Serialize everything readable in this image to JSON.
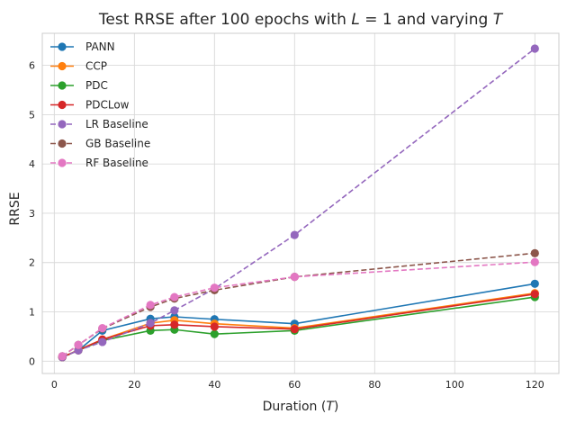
{
  "chart_data": {
    "type": "line",
    "title": "Test RRSE after 100 epochs with L = 1 and varying T",
    "title_parts": {
      "prefix": "Test RRSE after 100 epochs with ",
      "var1": "L",
      "mid": " = 1 and varying ",
      "var2": "T"
    },
    "xlabel": "Duration (T)",
    "xlabel_parts": {
      "prefix": "Duration (",
      "var": "T",
      "suffix": ")"
    },
    "ylabel": "RRSE",
    "xlim": [
      -3,
      126
    ],
    "ylim": [
      -0.25,
      6.65
    ],
    "xticks": [
      0,
      20,
      40,
      60,
      80,
      100,
      120
    ],
    "yticks": [
      0,
      1,
      2,
      3,
      4,
      5,
      6
    ],
    "grid": true,
    "legend_position": "top-left",
    "x": [
      2,
      6,
      12,
      24,
      30,
      40,
      60,
      120
    ],
    "series": [
      {
        "name": "PANN",
        "color": "#1f77b4",
        "dashed": false,
        "values": [
          0.08,
          0.22,
          0.62,
          0.86,
          0.9,
          0.85,
          0.76,
          1.57
        ]
      },
      {
        "name": "CCP",
        "color": "#ff7f0e",
        "dashed": false,
        "values": [
          0.08,
          0.23,
          0.44,
          0.77,
          0.83,
          0.76,
          0.67,
          1.38
        ]
      },
      {
        "name": "PDC",
        "color": "#2ca02c",
        "dashed": false,
        "values": [
          0.08,
          0.22,
          0.42,
          0.62,
          0.64,
          0.55,
          0.62,
          1.3
        ]
      },
      {
        "name": "PDCLow",
        "color": "#d62728",
        "dashed": false,
        "values": [
          0.08,
          0.22,
          0.44,
          0.72,
          0.74,
          0.7,
          0.65,
          1.36
        ]
      },
      {
        "name": "LR Baseline",
        "color": "#9467bd",
        "dashed": true,
        "values": [
          0.08,
          0.22,
          0.39,
          0.77,
          1.03,
          1.47,
          2.56,
          6.34
        ]
      },
      {
        "name": "GB Baseline",
        "color": "#8c564b",
        "dashed": true,
        "values": [
          0.1,
          0.33,
          0.66,
          1.1,
          1.27,
          1.44,
          1.71,
          2.19
        ]
      },
      {
        "name": "RF Baseline",
        "color": "#e377c2",
        "dashed": true,
        "values": [
          0.1,
          0.33,
          0.67,
          1.14,
          1.3,
          1.49,
          1.71,
          2.01
        ]
      }
    ]
  }
}
